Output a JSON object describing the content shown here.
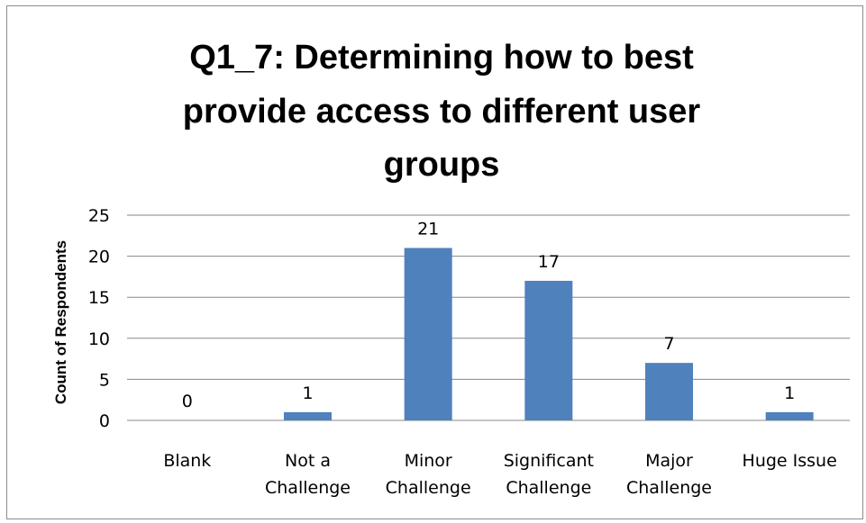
{
  "chart_data": {
    "type": "bar",
    "title_lines": [
      "Q1_7: Determining how to best",
      "provide access to different user",
      "groups"
    ],
    "ylabel": "Count of Respondents",
    "xlabel": "",
    "ylim": [
      0,
      25
    ],
    "yticks": [
      "0",
      "5",
      "10",
      "15",
      "20",
      "25"
    ],
    "grid": true,
    "legend": "none",
    "categories": [
      [
        "Blank"
      ],
      [
        "Not a",
        "Challenge"
      ],
      [
        "Minor",
        "Challenge"
      ],
      [
        "Significant",
        "Challenge"
      ],
      [
        "Major",
        "Challenge"
      ],
      [
        "Huge Issue"
      ]
    ],
    "values": [
      0,
      1,
      21,
      17,
      7,
      1
    ],
    "data_labels": [
      "0",
      "1",
      "21",
      "17",
      "7",
      "1"
    ],
    "bar_color": "#4f81bd",
    "grid_color": "#878787"
  }
}
